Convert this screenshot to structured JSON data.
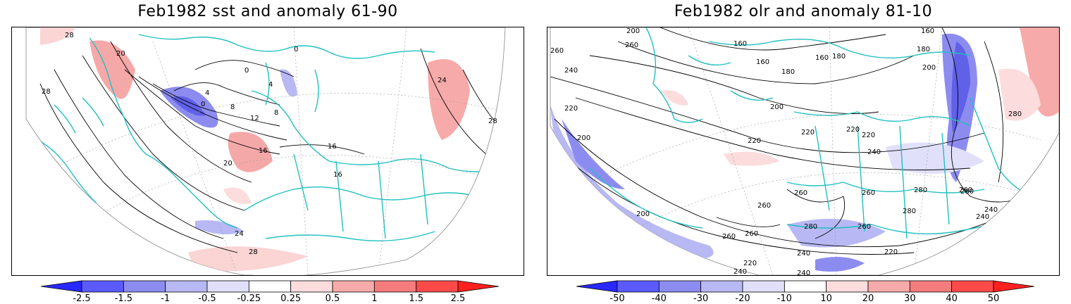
{
  "left": {
    "title": "Feb1982 sst and anomaly 61-90",
    "contour_labels": [
      "28",
      "20",
      "28",
      "0",
      "4",
      "8",
      "12",
      "16",
      "20",
      "24",
      "28",
      "0",
      "4",
      "8",
      "0",
      "16",
      "16",
      "24",
      "28"
    ],
    "colorbar": {
      "ticks": [
        "-2.5",
        "-1.5",
        "-1",
        "-0.5",
        "-0.25",
        "0.25",
        "0.5",
        "1",
        "1.5",
        "2.5"
      ],
      "colors": [
        "#2828ff",
        "#5a5aff",
        "#8c8cf0",
        "#b8b8f5",
        "#e0e0fa",
        "#ffffff",
        "#fcdcdc",
        "#f7aaaa",
        "#f57c7c",
        "#ff4a4a",
        "#ff2020"
      ]
    }
  },
  "right": {
    "title": "Feb1982 olr and anomaly 81-10",
    "contour_labels": [
      "200",
      "260",
      "160",
      "160",
      "160",
      "180",
      "160",
      "180",
      "180",
      "200",
      "260",
      "240",
      "220",
      "200",
      "200",
      "220",
      "220",
      "220",
      "220",
      "240",
      "260",
      "260",
      "260",
      "280",
      "280",
      "260",
      "280",
      "240",
      "200",
      "260",
      "260",
      "280",
      "260",
      "240",
      "220",
      "240",
      "240",
      "220",
      "240",
      "280"
    ],
    "colorbar": {
      "ticks": [
        "-50",
        "-40",
        "-30",
        "-20",
        "-10",
        "10",
        "20",
        "30",
        "40",
        "50"
      ],
      "colors": [
        "#2828ff",
        "#5a5aff",
        "#8c8cf0",
        "#b8b8f5",
        "#e0e0fa",
        "#ffffff",
        "#fcdcdc",
        "#f7aaaa",
        "#f57c7c",
        "#ff4a4a",
        "#ff2020"
      ]
    }
  },
  "colors": {
    "coast": "#20c0c0",
    "contour": "#000000",
    "pos": "#f5a0a0",
    "neg": "#a0a0f0"
  }
}
